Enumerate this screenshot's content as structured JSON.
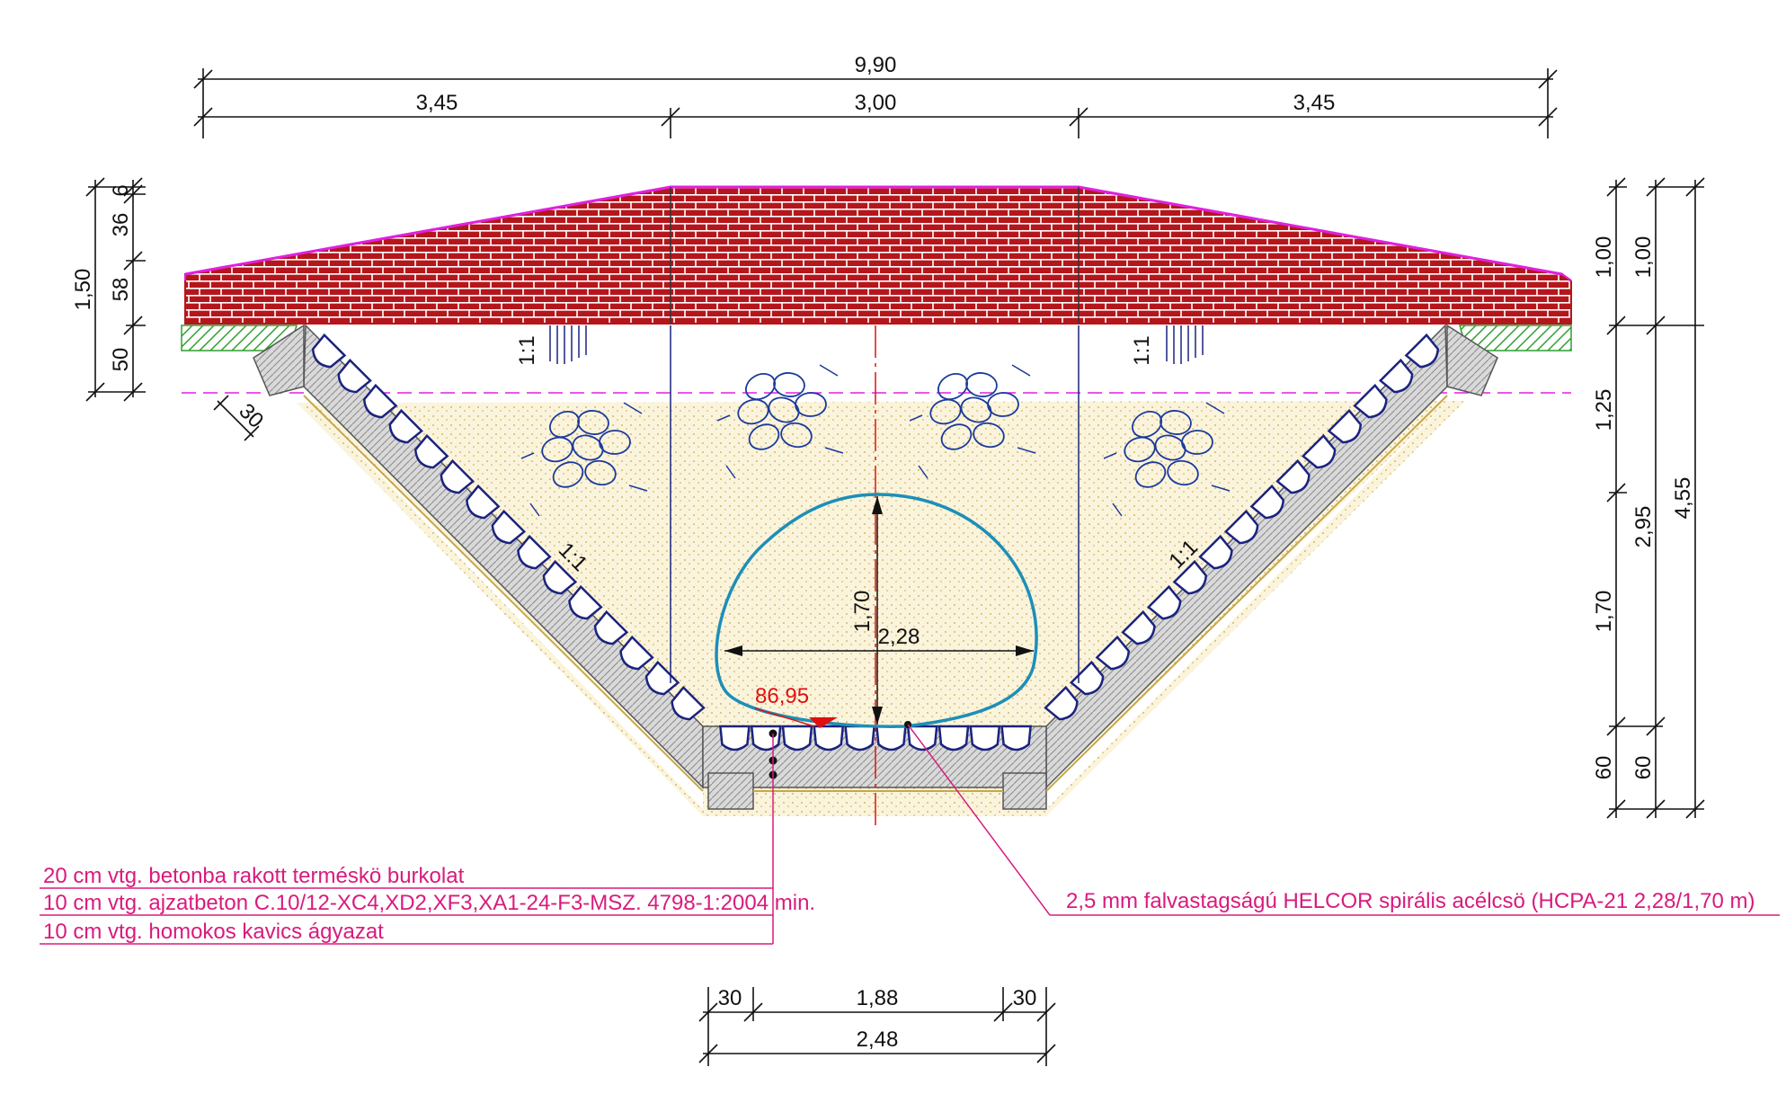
{
  "dimensions": {
    "top_total": "9,90",
    "top_left": "3,45",
    "top_middle": "3,00",
    "top_right": "3,45",
    "left_total": "1,50",
    "left_a": "6",
    "left_b": "36",
    "left_c": "58",
    "left_d": "50",
    "slope_thickness": "30",
    "right_inner_a": "1,00",
    "right_inner_b": "1,25",
    "right_inner_c": "1,70",
    "right_inner_d": "60",
    "right_outer_a": "1,00",
    "right_outer_b": "2,95",
    "right_outer_c": "60",
    "right_total": "4,55",
    "pipe_height": "1,70",
    "pipe_width": "2,28",
    "bottom_left": "30",
    "bottom_middle": "1,88",
    "bottom_right": "30",
    "bottom_total": "2,48"
  },
  "slope_labels": {
    "upper_left": "1:1",
    "upper_right": "1:1",
    "lower_left": "1:1",
    "lower_right": "1:1"
  },
  "elevation": "86,95",
  "layers": [
    "20 cm vtg. betonba rakott terméskö burkolat",
    "10 cm vtg. ajzatbeton C.10/12-XC4,XD2,XF3,XA1-24-F3-MSZ. 4798-1:2004 min.",
    "10 cm vtg. homokos kavics ágyazat"
  ],
  "pipe_note": "2,5 mm falvastagságú HELCOR spirális acélcsö (HCPA-21 2,28/1,70 m)",
  "colors": {
    "brick": "#b5161c",
    "mortar": "#ffffff",
    "road_edge": "#e020e0",
    "revetment": "#1a237e",
    "pipe": "#1c8fb8",
    "note": "#d81b7d",
    "elevation": "#e01010",
    "grass": "#2e9e2e",
    "stone_fill": "#1a3a9c"
  }
}
